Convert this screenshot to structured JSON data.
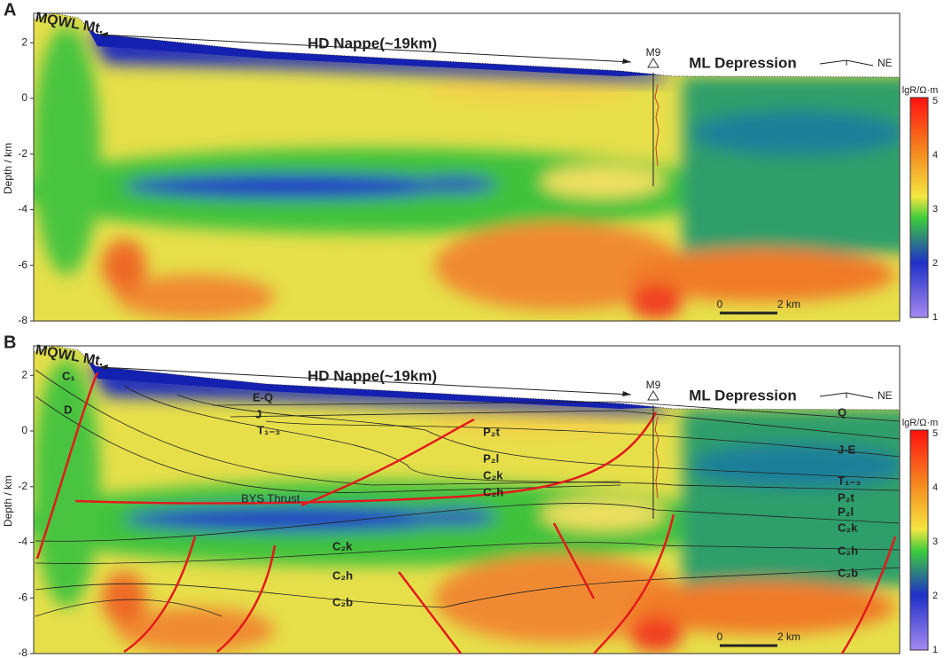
{
  "panels": [
    {
      "label": "A",
      "mountain": "MQWL Mt.",
      "nappe": "HD Nappe(~19km)",
      "well": "M9",
      "depression": "ML Depression",
      "direction": "NE",
      "y_axis_title": "Depth / km",
      "yticks": [
        "2",
        "0",
        "-2",
        "-4",
        "-6",
        "-8"
      ],
      "scale_bar": {
        "start": "0",
        "end": "2 km"
      },
      "colorbar": {
        "title": "lgR/Ω·m",
        "ticks": [
          "5",
          "4",
          "3",
          "2",
          "1"
        ]
      }
    },
    {
      "label": "B",
      "mountain": "MQWL Mt.",
      "nappe": "HD Nappe(~19km)",
      "well": "M9",
      "depression": "ML Depression",
      "direction": "NE",
      "y_axis_title": "Depth / km",
      "yticks": [
        "2",
        "0",
        "-2",
        "-4",
        "-6",
        "-8"
      ],
      "scale_bar": {
        "start": "0",
        "end": "2 km"
      },
      "colorbar": {
        "title": "lgR/Ω·m",
        "ticks": [
          "5",
          "4",
          "3",
          "2",
          "1"
        ]
      },
      "strata": [
        "C₁",
        "D",
        "E-Q",
        "J",
        "T₁₋₃",
        "P₂t",
        "P₂l",
        "C₂k",
        "C₂h",
        "BYS Thrust",
        "C₂k",
        "C₂h",
        "C₂b",
        "Q",
        "J-E",
        "T₁₋₃",
        "P₂t",
        "P₂l",
        "C₂k",
        "C₂h",
        "C₂b"
      ]
    }
  ]
}
